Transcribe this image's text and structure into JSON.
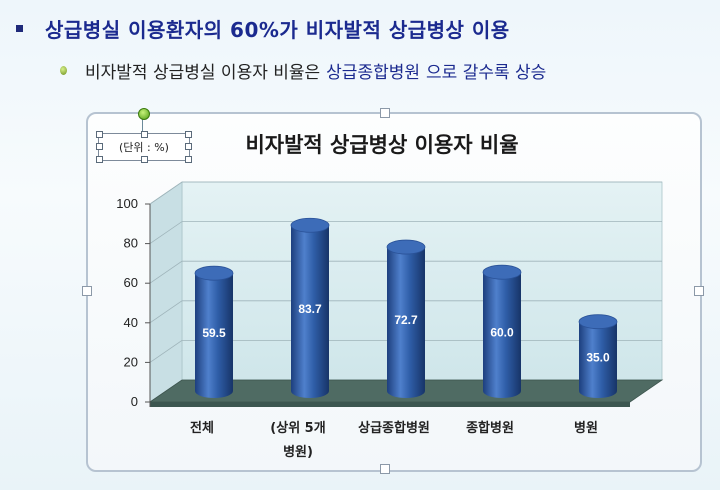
{
  "slide": {
    "bullet1": "상급병실 이용환자의 60%가 비자발적 상급병상 이용",
    "bullet2_part1": "비자발적 상급병실 이용자 비율은",
    "bullet2_part2": "상급종합병원",
    "bullet2_part3": "으로 갈수록 상승"
  },
  "unit_label": "(단위 : %)",
  "colors": {
    "bar": "#2f5ea8",
    "bar_dark": "#1d3f7e",
    "floor": "#4f6b63",
    "wall": "#d9ecf0",
    "title_text": "#1b2a8f"
  },
  "chart_data": {
    "type": "bar",
    "title": "비자발적 상급병상 이용자 비율",
    "categories": [
      "전체",
      "(상위 5개 병원)",
      "상급종합병원",
      "종합병원",
      "병원"
    ],
    "category_lines": [
      [
        "전체"
      ],
      [
        "(상위 5개",
        "병원)"
      ],
      [
        "상급종합병원"
      ],
      [
        "종합병원"
      ],
      [
        "병원"
      ]
    ],
    "values": [
      59.5,
      83.7,
      72.7,
      60.0,
      35.0
    ],
    "value_labels": [
      "59.5",
      "83.7",
      "72.7",
      "60.0",
      "35.0"
    ],
    "ylim": [
      0,
      100
    ],
    "yticks": [
      0,
      20,
      40,
      60,
      80,
      100
    ],
    "xlabel": "",
    "ylabel": "",
    "grid": true,
    "style": "3d-cylinder"
  }
}
